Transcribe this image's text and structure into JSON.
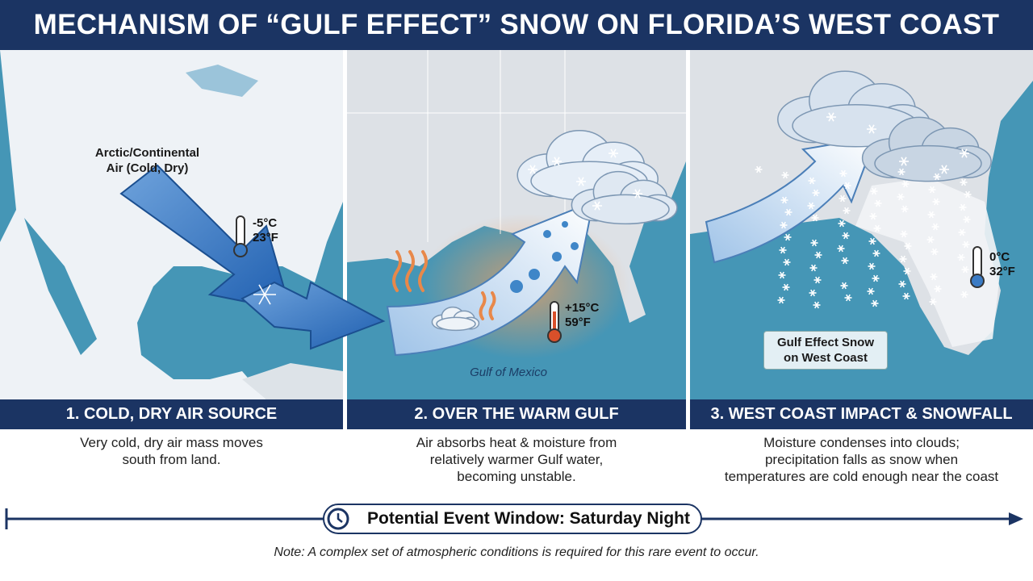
{
  "title": "MECHANISM OF “GULF EFFECT” SNOW ON FLORIDA’S WEST COAST",
  "panels": [
    {
      "map_label": [
        "Arctic/Continental",
        "Air (Cold, Dry)"
      ],
      "temperature": [
        "-5°C",
        "23°F"
      ],
      "heading": "1. COLD, DRY AIR SOURCE",
      "description": [
        "Very cold, dry air mass moves",
        "south from land."
      ]
    },
    {
      "map_label": [
        "Gulf of Mexico"
      ],
      "temperature": [
        "+15°C",
        "59°F"
      ],
      "heading": "2. OVER THE WARM GULF",
      "description": [
        "Air absorbs heat & moisture from",
        "relatively warmer Gulf water,",
        "becoming unstable."
      ]
    },
    {
      "map_label": [
        "Gulf Effect Snow",
        "on West Coast"
      ],
      "temperature": [
        "0°C",
        "32°F"
      ],
      "heading": "3. WEST COAST IMPACT & SNOWFALL",
      "description": [
        "Moisture condenses into clouds;",
        "precipitation falls as snow when",
        "temperatures are cold enough near the coast"
      ]
    }
  ],
  "event_window": "Potential Event Window: Saturday Night",
  "note": "Note: A complex set of atmospheric conditions is required for this rare event to occur."
}
